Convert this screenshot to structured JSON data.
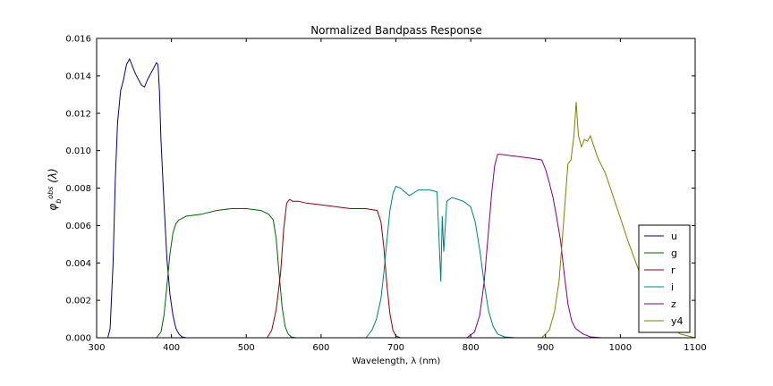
{
  "chart_data": {
    "type": "line",
    "title": "Normalized Bandpass Response",
    "xlabel": "Wavelength, λ (nm)",
    "ylabel": "φb obs (λ)",
    "xlim": [
      300,
      1100
    ],
    "ylim": [
      0,
      0.016
    ],
    "xticks": [
      300,
      400,
      500,
      600,
      700,
      800,
      900,
      1000,
      1100
    ],
    "xtick_labels": [
      "300",
      "400",
      "500",
      "600",
      "700",
      "800",
      "900",
      "1000",
      "1100"
    ],
    "yticks": [
      0,
      0.002,
      0.004,
      0.006,
      0.008,
      0.01,
      0.012,
      0.014,
      0.016
    ],
    "ytick_labels": [
      "0.000",
      "0.002",
      "0.004",
      "0.006",
      "0.008",
      "0.010",
      "0.012",
      "0.014",
      "0.016"
    ],
    "grid": false,
    "legend_position": "bottom-right",
    "series": [
      {
        "name": "u",
        "color": "#000080",
        "x": [
          300,
          315,
          318,
          322,
          325,
          328,
          332,
          336,
          340,
          344,
          348,
          352,
          356,
          360,
          364,
          368,
          372,
          376,
          380,
          382,
          384,
          386,
          390,
          394,
          398,
          402,
          406,
          410,
          414,
          420,
          430,
          1100
        ],
        "y": [
          0,
          0,
          0.0005,
          0.004,
          0.0085,
          0.0115,
          0.0132,
          0.0138,
          0.0146,
          0.0149,
          0.0145,
          0.0141,
          0.0138,
          0.0135,
          0.0134,
          0.0138,
          0.0141,
          0.0144,
          0.0147,
          0.0146,
          0.0132,
          0.0106,
          0.0072,
          0.0042,
          0.0023,
          0.0012,
          0.0005,
          0.0002,
          5e-05,
          0,
          0,
          0
        ]
      },
      {
        "name": "g",
        "color": "#006400",
        "x": [
          300,
          380,
          386,
          390,
          394,
          398,
          402,
          406,
          410,
          420,
          440,
          460,
          480,
          500,
          520,
          530,
          536,
          540,
          544,
          548,
          552,
          556,
          560,
          566,
          575,
          1100
        ],
        "y": [
          0,
          0,
          0.0003,
          0.0012,
          0.0028,
          0.0045,
          0.0056,
          0.0061,
          0.0063,
          0.0065,
          0.0066,
          0.0068,
          0.0069,
          0.0069,
          0.0068,
          0.0066,
          0.0063,
          0.0053,
          0.0034,
          0.0016,
          0.0006,
          0.0002,
          5e-05,
          0,
          0,
          0
        ]
      },
      {
        "name": "r",
        "color": "#8b0000",
        "x": [
          300,
          528,
          534,
          540,
          546,
          550,
          554,
          558,
          562,
          570,
          580,
          600,
          620,
          640,
          660,
          675,
          680,
          684,
          688,
          692,
          696,
          700,
          706,
          715,
          1100
        ],
        "y": [
          0,
          0,
          0.0004,
          0.0015,
          0.0035,
          0.0058,
          0.0072,
          0.0074,
          0.0073,
          0.0073,
          0.0072,
          0.0071,
          0.007,
          0.0069,
          0.0069,
          0.0068,
          0.0062,
          0.0048,
          0.0028,
          0.0013,
          0.0004,
          0.0001,
          0,
          0,
          0
        ]
      },
      {
        "name": "i",
        "color": "#008080",
        "x": [
          300,
          660,
          668,
          674,
          680,
          684,
          688,
          692,
          696,
          700,
          706,
          712,
          718,
          730,
          745,
          755,
          760,
          762,
          764,
          768,
          775,
          790,
          800,
          806,
          812,
          818,
          824,
          830,
          836,
          845,
          860,
          1100
        ],
        "y": [
          0,
          0,
          0.0004,
          0.001,
          0.0021,
          0.0035,
          0.0052,
          0.0068,
          0.0077,
          0.0081,
          0.008,
          0.0078,
          0.0076,
          0.0079,
          0.0079,
          0.0078,
          0.003,
          0.0065,
          0.0046,
          0.0073,
          0.0075,
          0.0073,
          0.007,
          0.0062,
          0.0047,
          0.0029,
          0.0014,
          0.0006,
          0.0002,
          5e-05,
          0,
          0
        ]
      },
      {
        "name": "z",
        "color": "#800080",
        "x": [
          300,
          795,
          805,
          812,
          818,
          824,
          828,
          832,
          836,
          840,
          860,
          880,
          895,
          900,
          905,
          910,
          915,
          920,
          925,
          930,
          935,
          940,
          950,
          960,
          975,
          1100
        ],
        "y": [
          0,
          0,
          0.0003,
          0.0012,
          0.003,
          0.0058,
          0.0077,
          0.0092,
          0.0098,
          0.0098,
          0.0097,
          0.0096,
          0.0095,
          0.009,
          0.0083,
          0.0075,
          0.0064,
          0.0052,
          0.0034,
          0.0018,
          0.0009,
          0.0005,
          0.0002,
          5e-05,
          0,
          0
        ]
      },
      {
        "name": "y4",
        "color": "#808000",
        "x": [
          300,
          895,
          905,
          912,
          918,
          922,
          926,
          930,
          934,
          938,
          941,
          944,
          948,
          952,
          956,
          960,
          964,
          970,
          980,
          990,
          1000,
          1010,
          1020,
          1030,
          1040,
          1050,
          1060,
          1070,
          1080,
          1090,
          1100
        ],
        "y": [
          0,
          0,
          0.0004,
          0.0014,
          0.003,
          0.005,
          0.0072,
          0.0093,
          0.0095,
          0.0108,
          0.0126,
          0.0108,
          0.0102,
          0.0106,
          0.0105,
          0.0108,
          0.0103,
          0.0096,
          0.0088,
          0.0076,
          0.0064,
          0.0052,
          0.0041,
          0.003,
          0.0021,
          0.0013,
          0.0008,
          0.0005,
          0.0002,
          0.0001,
          0
        ]
      }
    ]
  }
}
